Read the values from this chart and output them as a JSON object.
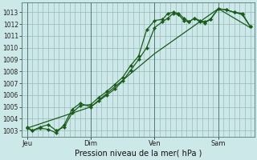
{
  "bg_color": "#cce8e8",
  "grid_color": "#99bbbb",
  "line_color": "#1a5c1a",
  "marker_color": "#1a5c1a",
  "xlabel": "Pression niveau de la mer( hPa )",
  "ylim": [
    1002.5,
    1013.8
  ],
  "xlim": [
    0,
    175
  ],
  "yticks": [
    1003,
    1004,
    1005,
    1006,
    1007,
    1008,
    1009,
    1010,
    1011,
    1012,
    1013
  ],
  "day_labels": [
    "Jeu",
    "Dim",
    "Ven",
    "Sam"
  ],
  "day_positions": [
    4,
    52,
    100,
    148
  ],
  "series1_x": [
    4,
    8,
    14,
    20,
    26,
    32,
    38,
    44,
    52,
    58,
    64,
    70,
    76,
    82,
    88,
    94,
    100,
    106,
    110,
    114,
    118,
    122,
    126,
    130,
    134,
    138,
    142,
    148,
    154,
    160,
    166,
    172
  ],
  "series1_y": [
    1003.2,
    1003.0,
    1003.2,
    1003.1,
    1002.8,
    1003.5,
    1004.8,
    1005.3,
    1005.0,
    1005.5,
    1006.0,
    1006.5,
    1007.2,
    1008.1,
    1009.0,
    1010.0,
    1011.7,
    1012.2,
    1012.5,
    1012.9,
    1012.8,
    1012.3,
    1012.2,
    1012.5,
    1012.2,
    1012.1,
    1012.4,
    1013.3,
    1013.2,
    1013.0,
    1012.8,
    1011.8
  ],
  "series2_x": [
    4,
    8,
    14,
    20,
    26,
    32,
    38,
    44,
    52,
    58,
    64,
    70,
    76,
    82,
    88,
    94,
    100,
    106,
    110,
    114,
    118,
    122,
    126,
    130,
    134,
    138,
    142,
    148,
    154,
    160,
    166,
    172
  ],
  "series2_y": [
    1003.3,
    1003.0,
    1003.3,
    1003.5,
    1003.0,
    1003.3,
    1004.5,
    1005.1,
    1005.2,
    1005.8,
    1006.3,
    1006.9,
    1007.5,
    1008.5,
    1009.3,
    1011.5,
    1012.3,
    1012.4,
    1012.9,
    1013.0,
    1012.9,
    1012.5,
    1012.2,
    1012.5,
    1012.3,
    1012.2,
    1012.4,
    1013.3,
    1013.2,
    1013.0,
    1012.9,
    1011.8
  ],
  "series3_x": [
    4,
    52,
    100,
    148,
    172
  ],
  "series3_y": [
    1003.2,
    1005.0,
    1009.5,
    1013.3,
    1011.7
  ]
}
